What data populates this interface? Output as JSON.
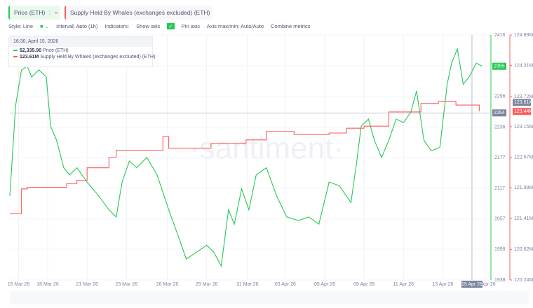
{
  "tabs": [
    "Price (ETH)",
    "Supply Held By Whales (exchanges excluded) (ETH)"
  ],
  "toolbar": {
    "style": "Style: Line",
    "interval": "Interval: Auto (1h)",
    "indicators": "Indicators:",
    "show_axis": "Show axis",
    "pin_axis": "Pin axis",
    "axis_range": "Axis max/min: Auto/Auto",
    "combine": "Combine metrics"
  },
  "tooltip": {
    "time": "16:30, April 15, 2026",
    "rows": [
      {
        "value": "$2,335.90",
        "name": "Price (ETH)",
        "color": "#26c953"
      },
      {
        "value": "123.61M",
        "name": "Supply Held By Whales (exchanges excluded) (ETH)",
        "color": "#ff5b5b"
      }
    ]
  },
  "watermark": "·santiment·",
  "chart_data": {
    "type": "line",
    "xlim": [
      0,
      33
    ],
    "xticks": [
      {
        "value": 0.6,
        "label": "15 Mar 26"
      },
      {
        "value": 2.6,
        "label": "18 Mar 26"
      },
      {
        "value": 5.3,
        "label": "21 Mar 26"
      },
      {
        "value": 8.0,
        "label": "23 Mar 26"
      },
      {
        "value": 10.8,
        "label": "26 Mar 26"
      },
      {
        "value": 13.5,
        "label": "29 Mar 26"
      },
      {
        "value": 16.3,
        "label": "31 Mar 26"
      },
      {
        "value": 18.9,
        "label": "03 Apr 26"
      },
      {
        "value": 21.6,
        "label": "05 Apr 26"
      },
      {
        "value": 24.3,
        "label": "08 Apr 26"
      },
      {
        "value": 27.0,
        "label": "11 Apr 26"
      },
      {
        "value": 29.7,
        "label": "13 Apr 26"
      },
      {
        "value": 32.6,
        "label": "16 Apr 26"
      }
    ],
    "ylim": [
      1938,
      2416
    ],
    "yticks": [
      1938,
      1998,
      2057,
      2117,
      2177,
      2236,
      2296,
      2356,
      2416
    ],
    "y2lim": [
      120.24,
      124.89
    ],
    "y2ticks": [
      {
        "value": 120.24,
        "label": "120.24M"
      },
      {
        "value": 120.82,
        "label": "120.82M"
      },
      {
        "value": 121.41,
        "label": "121.41M"
      },
      {
        "value": 121.99,
        "label": "121.99M"
      },
      {
        "value": 122.57,
        "label": "122.57M"
      },
      {
        "value": 123.15,
        "label": "123.15M"
      },
      {
        "value": 123.72,
        "label": "123.72M"
      },
      {
        "value": 124.31,
        "label": "124.31M"
      },
      {
        "value": 124.89,
        "label": "124.89M"
      }
    ],
    "grid": true,
    "series": [
      {
        "name": "Price (ETH)",
        "color": "#26c953",
        "axis": "y",
        "x": [
          0,
          0.4,
          0.8,
          1.2,
          1.5,
          2.0,
          2.5,
          2.8,
          3.2,
          3.7,
          4.1,
          4.6,
          5.3,
          6.1,
          6.8,
          7.3,
          7.7,
          8.2,
          8.7,
          9.4,
          10.1,
          10.9,
          11.6,
          12.1,
          12.8,
          13.5,
          14.0,
          14.5,
          15.0,
          15.4,
          15.9,
          16.4,
          16.9,
          17.6,
          18.3,
          19.0,
          19.8,
          20.5,
          21.2,
          21.9,
          22.6,
          23.4,
          23.8,
          24.1,
          24.6,
          25.0,
          25.5,
          26.0,
          26.5,
          27.0,
          27.5,
          27.9,
          28.4,
          28.9,
          29.5,
          30.0,
          30.3,
          30.7,
          31.1,
          31.5,
          32.0,
          32.4
        ],
        "values": [
          2102,
          2279,
          2348,
          2355,
          2334,
          2348,
          2334,
          2238,
          2211,
          2157,
          2143,
          2157,
          2129,
          2102,
          2075,
          2061,
          2129,
          2170,
          2157,
          2177,
          2143,
          2075,
          2020,
          1979,
          1992,
          2006,
          1992,
          1965,
          2075,
          2047,
          2116,
          2075,
          2143,
          2157,
          2102,
          2061,
          2054,
          2061,
          2047,
          2129,
          2122,
          2089,
          2170,
          2238,
          2252,
          2211,
          2177,
          2211,
          2252,
          2245,
          2265,
          2307,
          2211,
          2190,
          2197,
          2320,
          2361,
          2389,
          2320,
          2334,
          2361,
          2355
        ]
      },
      {
        "name": "Supply Held By Whales (exchanges excluded) (ETH)",
        "color": "#ff5b5b",
        "axis": "y2",
        "step": true,
        "x": [
          0,
          0.8,
          1.2,
          3.9,
          4.6,
          5.3,
          6.8,
          7.3,
          10.5,
          10.9,
          13.8,
          16.2,
          17.6,
          19.5,
          21.9,
          23.1,
          24.3,
          26.0,
          28.2,
          29.4,
          30.6,
          32.2
        ],
        "values": [
          121.5,
          121.97,
          122.0,
          122.07,
          122.13,
          122.37,
          122.57,
          122.7,
          122.96,
          122.74,
          122.83,
          122.9,
          123.06,
          123.0,
          123.03,
          123.12,
          123.16,
          123.43,
          123.59,
          123.63,
          123.56,
          123.44
        ]
      }
    ],
    "badges": [
      {
        "axis": "y",
        "value": 2355,
        "label": "2355",
        "color": "#26c953"
      },
      {
        "axis": "y",
        "value": 2264,
        "label": "2264",
        "color": "#7a859e"
      },
      {
        "axis": "y2",
        "value": 123.61,
        "label": "123.61M",
        "color": "#7a859e"
      },
      {
        "axis": "y2",
        "value": 123.44,
        "label": "123.44M",
        "color": "#ff5b5b"
      }
    ],
    "crosshair": {
      "x": {
        "value": 31.7,
        "label": "15 Apr 26"
      },
      "y": 2264
    }
  }
}
